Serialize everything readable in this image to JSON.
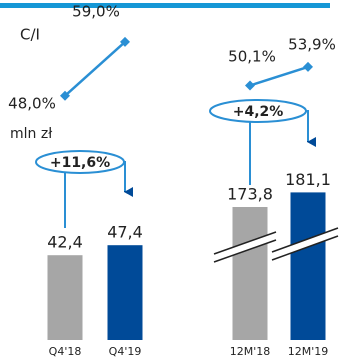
{
  "chart_data": {
    "type": "bar",
    "categories": [
      "Q4'18",
      "Q4'19",
      "12M'18",
      "12M'19"
    ],
    "ci": {
      "label": "C/I",
      "values": [
        48.0,
        59.0,
        50.1,
        53.9
      ],
      "value_labels": [
        "48,0%",
        "59,0%",
        "50,1%",
        "53,9%"
      ],
      "color": "#2a8fd4"
    },
    "income": {
      "label": "mln zł",
      "values": [
        42.4,
        47.4,
        173.8,
        181.1
      ],
      "value_labels": [
        "42,4",
        "47,4",
        "173,8",
        "181,1"
      ],
      "colors": [
        "#a6a6a6",
        "#004a98",
        "#a6a6a6",
        "#004a98"
      ]
    },
    "changes": {
      "values": [
        11.6,
        4.2
      ],
      "value_labels": [
        "+11,6%",
        "+4,2%"
      ]
    }
  }
}
